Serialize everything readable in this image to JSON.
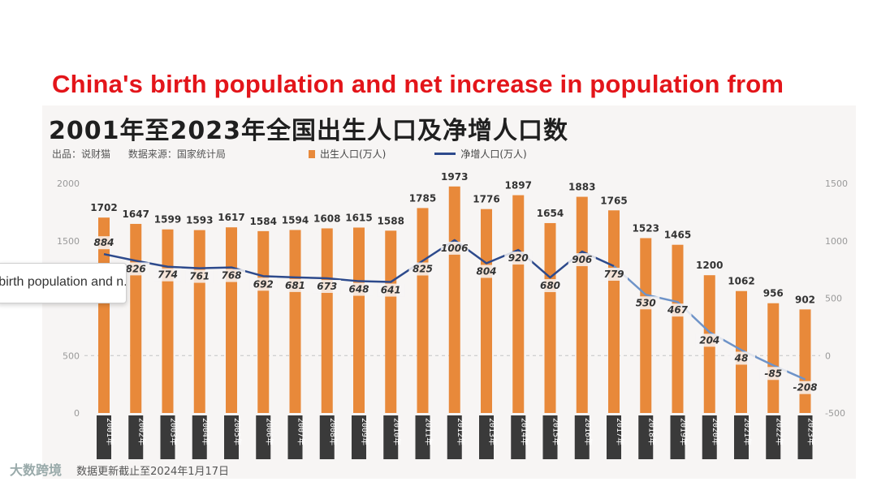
{
  "red_title": "China's birth population and net increase in population from",
  "chart_title": "2001年至2023年全国出生人口及净增人口数",
  "meta": {
    "publisher": "出品：说财猫",
    "source": "数据来源：国家统计局"
  },
  "legend": {
    "bars": "出生人口(万人)",
    "line": "净增人口(万人)"
  },
  "footer": {
    "logo": "大数跨境",
    "note": "数据更新截止至2024年1月17日"
  },
  "tooltip": {
    "text": "China's birth population and n..."
  },
  "colors": {
    "bar": "#e8893a",
    "line": "#2d4a8c",
    "line_faded": "#6e93c8",
    "title_red": "#e3151a",
    "year_box": "#3a3a3a"
  },
  "chart_data": {
    "type": "bar",
    "title": "2001年至2023年全国出生人口及净增人口数",
    "categories": [
      "2001年",
      "2002年",
      "2003年",
      "2004年",
      "2005年",
      "2006年",
      "2007年",
      "2008年",
      "2009年",
      "2010年",
      "2011年",
      "2012年",
      "2013年",
      "2014年",
      "2015年",
      "2016年",
      "2017年",
      "2018年",
      "2019年",
      "2020年",
      "2021年",
      "2022年",
      "2023年"
    ],
    "series": [
      {
        "name": "出生人口(万人)",
        "type": "bar",
        "axis": "left",
        "values": [
          1702,
          1647,
          1599,
          1593,
          1617,
          1584,
          1594,
          1608,
          1615,
          1588,
          1785,
          1973,
          1776,
          1897,
          1654,
          1883,
          1765,
          1523,
          1465,
          1200,
          1062,
          956,
          902
        ]
      },
      {
        "name": "净增人口(万人)",
        "type": "line",
        "axis": "right",
        "values": [
          884,
          826,
          774,
          761,
          768,
          692,
          681,
          673,
          648,
          641,
          825,
          1006,
          804,
          920,
          680,
          906,
          779,
          530,
          467,
          204,
          48,
          -85,
          -208
        ]
      }
    ],
    "left_axis": {
      "ticks": [
        0,
        500,
        1000,
        1500,
        2000
      ],
      "ylim": [
        0,
        2000
      ]
    },
    "right_axis": {
      "ticks": [
        -500,
        0,
        500,
        1000,
        1500
      ],
      "ylim": [
        -500,
        1500
      ]
    },
    "grid_reference_line": 500
  }
}
